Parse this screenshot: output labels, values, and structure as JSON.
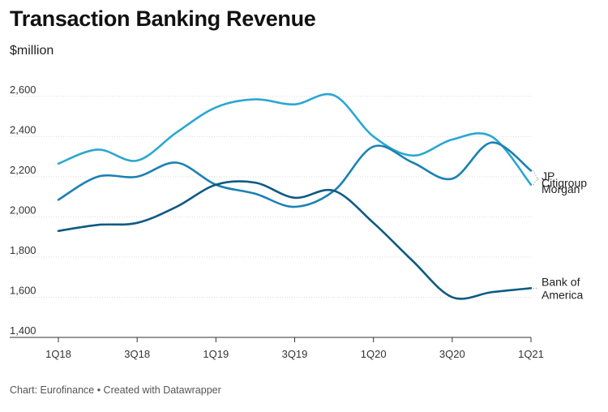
{
  "title": "Transaction Banking Revenue",
  "subtitle": "$million",
  "footer": "Chart: Eurofinance • Created with Datawrapper",
  "chart_data": {
    "type": "line",
    "title": "Transaction Banking Revenue",
    "ylabel": "$million",
    "xlabel": "",
    "ylim": [
      1400,
      2700
    ],
    "yticks": [
      1400,
      1600,
      1800,
      2000,
      2200,
      2400,
      2600
    ],
    "ytick_labels": [
      "1,400",
      "1,600",
      "1,800",
      "2,000",
      "2,200",
      "2,400",
      "2,600"
    ],
    "x": [
      "1Q18",
      "2Q18",
      "3Q18",
      "4Q18",
      "1Q19",
      "2Q19",
      "3Q19",
      "4Q19",
      "1Q20",
      "2Q20",
      "3Q20",
      "4Q20",
      "1Q21"
    ],
    "xtick_labels": [
      "1Q18",
      "3Q18",
      "1Q19",
      "3Q19",
      "1Q20",
      "3Q20",
      "1Q21"
    ],
    "grid": "horizontal",
    "legend": "direct labels at line ends",
    "series": [
      {
        "name": "JP Morgan",
        "label_lines": [
          "JP",
          "Morgan"
        ],
        "color": "#2ba7d2",
        "values": [
          2265,
          2335,
          2280,
          2420,
          2545,
          2585,
          2560,
          2605,
          2400,
          2305,
          2385,
          2400,
          2160
        ]
      },
      {
        "name": "Citigroup",
        "label_lines": [
          "Citigroup"
        ],
        "color": "#1a81b4",
        "values": [
          2085,
          2200,
          2200,
          2270,
          2160,
          2115,
          2050,
          2130,
          2350,
          2270,
          2190,
          2370,
          2230
        ]
      },
      {
        "name": "Bank of America",
        "label_lines": [
          "Bank of",
          "America"
        ],
        "color": "#0e5a82",
        "values": [
          1930,
          1960,
          1970,
          2050,
          2160,
          2170,
          2095,
          2130,
          1970,
          1780,
          1600,
          1625,
          1645
        ]
      }
    ]
  }
}
